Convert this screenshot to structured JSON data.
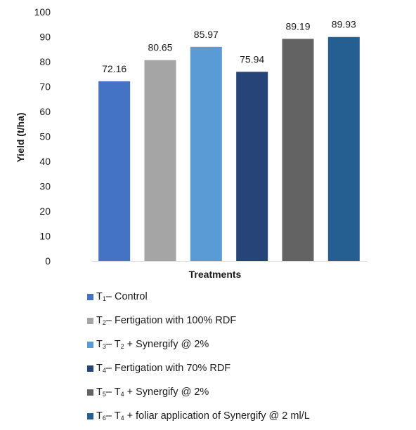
{
  "chart_data": {
    "type": "bar",
    "categories": [
      "T1",
      "T2",
      "T3",
      "T4",
      "T5",
      "T6"
    ],
    "values": [
      72.16,
      80.65,
      85.97,
      75.94,
      89.19,
      89.93
    ],
    "value_labels": [
      "72.16",
      "80.65",
      "85.97",
      "75.94",
      "89.19",
      "89.93"
    ],
    "colors": [
      "#4472C4",
      "#A5A5A5",
      "#5B9BD5",
      "#264478",
      "#636363",
      "#255E91"
    ],
    "xlabel": "Treatments",
    "ylabel": "Yield (t/ha)",
    "ylim": [
      0,
      100
    ],
    "yticks": [
      "0",
      "10",
      "20",
      "30",
      "40",
      "50",
      "60",
      "70",
      "80",
      "90",
      "100"
    ],
    "legend_position": "bottom",
    "grid": false
  },
  "legend": [
    {
      "code": "T",
      "sub": "1",
      "text": "– Control"
    },
    {
      "code": "T",
      "sub": "2",
      "text": "– Fertigation with 100% RDF"
    },
    {
      "code": "T",
      "sub": "3",
      "text": "– T",
      "sub2": "2",
      "text2": " + Synergify @ 2%"
    },
    {
      "code": "T",
      "sub": "4",
      "text": "– Fertigation with 70% RDF"
    },
    {
      "code": "T",
      "sub": "5",
      "text": "– T",
      "sub2": "4",
      "text2": " + Synergify @ 2%"
    },
    {
      "code": "T",
      "sub": "6",
      "text": "– T",
      "sub2": "4",
      "text2": " + foliar application of Synergify @ 2 ml/L"
    }
  ]
}
